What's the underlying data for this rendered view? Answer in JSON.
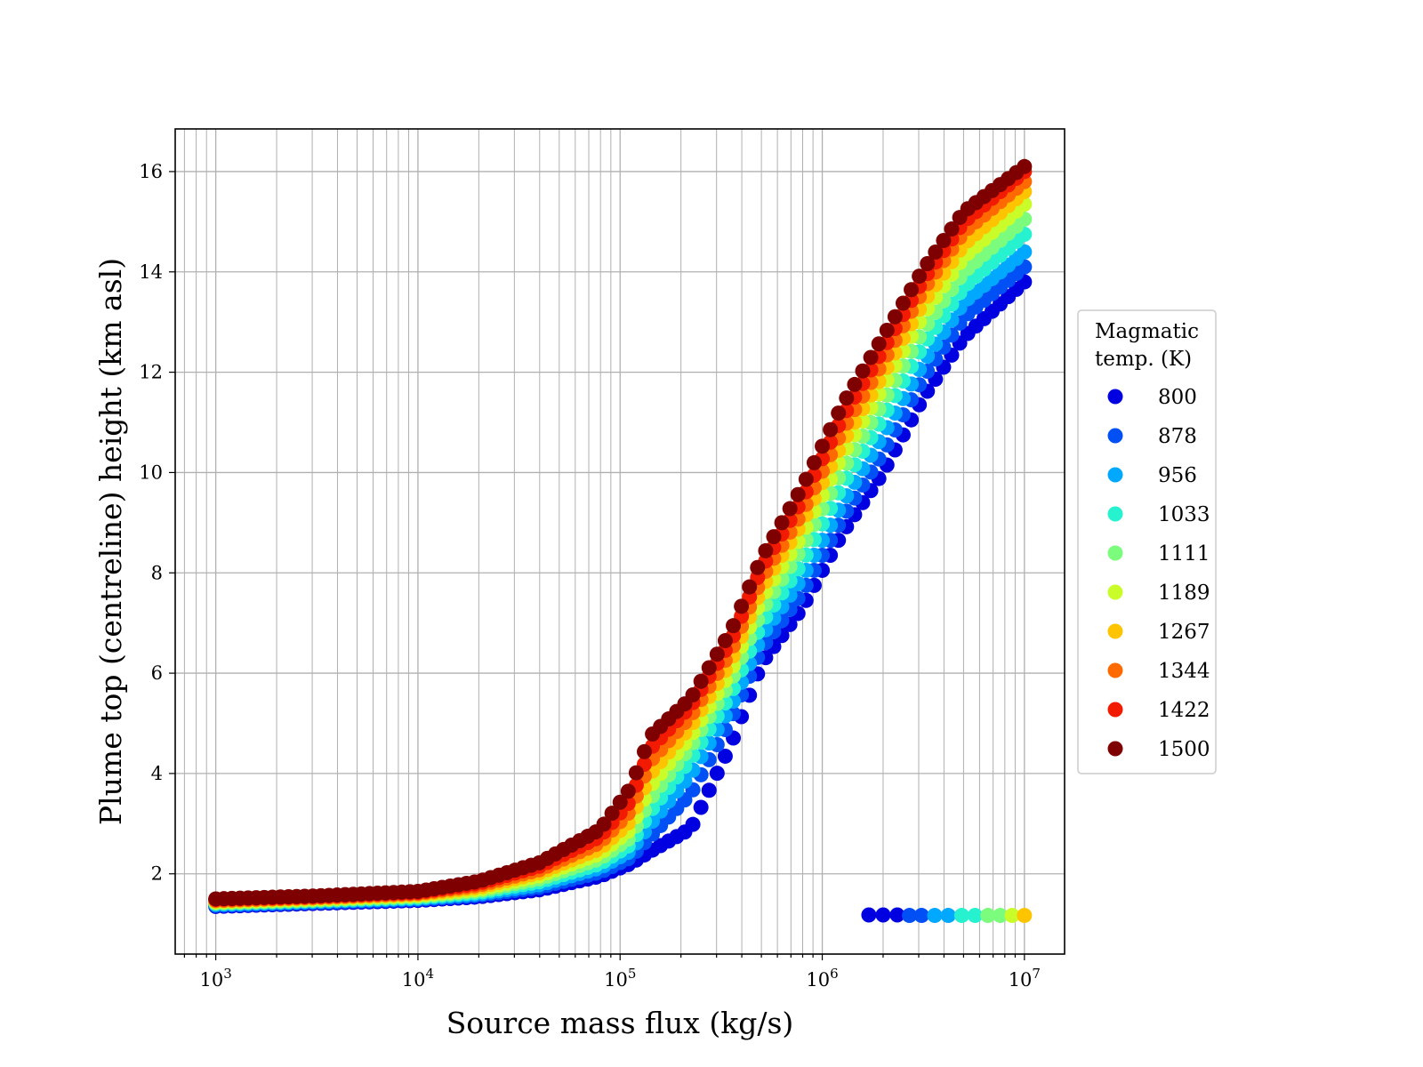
{
  "chart_data": {
    "type": "scatter",
    "xscale": "log",
    "xlim": [
      630,
      15800000
    ],
    "ylim": [
      0.4,
      16.85
    ],
    "grid": true,
    "xlabel": "Source mass flux (kg/s)",
    "ylabel": "Plume top (centreline) height (km asl)",
    "x_ticks": [
      {
        "value": 1000,
        "base": "10",
        "exp": "3"
      },
      {
        "value": 10000,
        "base": "10",
        "exp": "4"
      },
      {
        "value": 100000,
        "base": "10",
        "exp": "5"
      },
      {
        "value": 1000000,
        "base": "10",
        "exp": "6"
      },
      {
        "value": 10000000,
        "base": "10",
        "exp": "7"
      }
    ],
    "y_ticks": [
      {
        "value": 2,
        "label": "2"
      },
      {
        "value": 4,
        "label": "4"
      },
      {
        "value": 6,
        "label": "6"
      },
      {
        "value": 8,
        "label": "8"
      },
      {
        "value": 10,
        "label": "10"
      },
      {
        "value": 12,
        "label": "12"
      },
      {
        "value": 14,
        "label": "14"
      },
      {
        "value": 16,
        "label": "16"
      }
    ],
    "legend": {
      "title_lines": [
        "Magmatic",
        "temp. (K)"
      ],
      "placement": "outside-right",
      "entries": [
        {
          "label": "800",
          "color": "#0000e0"
        },
        {
          "label": "878",
          "color": "#0050f5"
        },
        {
          "label": "956",
          "color": "#00a8ff"
        },
        {
          "label": "1033",
          "color": "#26f2d0"
        },
        {
          "label": "1111",
          "color": "#7cfc7c"
        },
        {
          "label": "1189",
          "color": "#cafc2a"
        },
        {
          "label": "1267",
          "color": "#ffc400"
        },
        {
          "label": "1344",
          "color": "#ff6a00"
        },
        {
          "label": "1422",
          "color": "#f21a00"
        },
        {
          "label": "1500",
          "color": "#7f0000"
        }
      ]
    },
    "x_log10_points": [
      3.0,
      3.5,
      4.0,
      4.3,
      4.6,
      4.9,
      5.05,
      5.15,
      5.35,
      5.55,
      5.7,
      5.9,
      6.1,
      6.3,
      6.5,
      6.7,
      7.0
    ],
    "series": [
      {
        "name": "800",
        "color": "#0000e0",
        "y": [
          1.35,
          1.41,
          1.47,
          1.54,
          1.68,
          1.95,
          2.2,
          2.45,
          2.9,
          4.6,
          6.2,
          7.3,
          8.8,
          10.0,
          11.5,
          12.7,
          13.8
        ]
      },
      {
        "name": "878",
        "color": "#0050f5",
        "y": [
          1.37,
          1.43,
          1.49,
          1.57,
          1.73,
          2.03,
          2.32,
          2.75,
          3.6,
          5.1,
          6.5,
          7.6,
          9.1,
          10.4,
          11.9,
          13.1,
          14.1
        ]
      },
      {
        "name": "956",
        "color": "#00a8ff",
        "y": [
          1.39,
          1.45,
          1.51,
          1.6,
          1.78,
          2.12,
          2.45,
          3.0,
          4.0,
          5.35,
          6.75,
          7.9,
          9.4,
          10.75,
          12.2,
          13.4,
          14.4
        ]
      },
      {
        "name": "1033",
        "color": "#26f2d0",
        "y": [
          1.41,
          1.47,
          1.53,
          1.63,
          1.84,
          2.2,
          2.58,
          3.25,
          4.3,
          5.6,
          7.0,
          8.2,
          9.75,
          11.1,
          12.55,
          13.7,
          14.75
        ]
      },
      {
        "name": "1111",
        "color": "#7cfc7c",
        "y": [
          1.42,
          1.48,
          1.55,
          1.66,
          1.9,
          2.3,
          2.72,
          3.5,
          4.55,
          5.85,
          7.25,
          8.5,
          10.05,
          11.4,
          12.85,
          14.0,
          15.05
        ]
      },
      {
        "name": "1189",
        "color": "#cafc2a",
        "y": [
          1.44,
          1.5,
          1.57,
          1.69,
          1.96,
          2.4,
          2.88,
          3.75,
          4.75,
          6.05,
          7.5,
          8.75,
          10.35,
          11.7,
          13.15,
          14.3,
          15.35
        ]
      },
      {
        "name": "1267",
        "color": "#ffc400",
        "y": [
          1.46,
          1.52,
          1.59,
          1.73,
          2.02,
          2.5,
          3.05,
          4.0,
          4.95,
          6.25,
          7.7,
          9.0,
          10.6,
          11.95,
          13.4,
          14.55,
          15.6
        ]
      },
      {
        "name": "1344",
        "color": "#ff6a00",
        "y": [
          1.47,
          1.53,
          1.61,
          1.77,
          2.08,
          2.62,
          3.25,
          4.25,
          5.15,
          6.45,
          7.9,
          9.2,
          10.85,
          12.2,
          13.65,
          14.8,
          15.8
        ]
      },
      {
        "name": "1422",
        "color": "#f21a00",
        "y": [
          1.49,
          1.55,
          1.63,
          1.81,
          2.15,
          2.74,
          3.45,
          4.5,
          5.35,
          6.65,
          8.1,
          9.45,
          11.1,
          12.45,
          13.85,
          15.0,
          16.0
        ]
      },
      {
        "name": "1500",
        "color": "#7f0000",
        "y": [
          1.5,
          1.56,
          1.65,
          1.85,
          2.22,
          2.88,
          3.7,
          4.75,
          5.5,
          6.85,
          8.3,
          9.7,
          11.35,
          12.7,
          14.05,
          15.2,
          16.1
        ]
      }
    ],
    "collapse_points": [
      {
        "x": 1700000,
        "y": 1.18,
        "color": "#0000e0"
      },
      {
        "x": 2000000,
        "y": 1.18,
        "color": "#0000e0"
      },
      {
        "x": 2350000,
        "y": 1.18,
        "color": "#0000e0"
      },
      {
        "x": 2700000,
        "y": 1.17,
        "color": "#0050f5"
      },
      {
        "x": 3100000,
        "y": 1.17,
        "color": "#0050f5"
      },
      {
        "x": 3600000,
        "y": 1.17,
        "color": "#00a8ff"
      },
      {
        "x": 4200000,
        "y": 1.17,
        "color": "#00a8ff"
      },
      {
        "x": 4900000,
        "y": 1.17,
        "color": "#26f2d0"
      },
      {
        "x": 5700000,
        "y": 1.17,
        "color": "#26f2d0"
      },
      {
        "x": 6600000,
        "y": 1.17,
        "color": "#7cfc7c"
      },
      {
        "x": 7600000,
        "y": 1.17,
        "color": "#7cfc7c"
      },
      {
        "x": 8700000,
        "y": 1.17,
        "color": "#cafc2a"
      },
      {
        "x": 10000000,
        "y": 1.17,
        "color": "#ffc400"
      }
    ]
  }
}
